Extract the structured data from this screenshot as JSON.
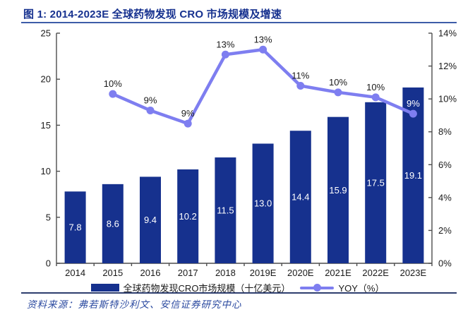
{
  "page": {
    "title": "图 1: 2014-2023E 全球药物发现 CRO 市场规模及增速",
    "source_label": "资料来源：",
    "source_text": "弗若斯特沙利文、安信证券研究中心"
  },
  "colors": {
    "bar": "#16318e",
    "line": "#7e7ef0",
    "title_text": "#16318f",
    "title_underline": "#3d5ca8",
    "axis": "#4d4d4d",
    "axis_text": "#1a1a1a",
    "bar_label": "#ffffff",
    "footer_divider": "#2e3e6e",
    "footer_text": "#2b4aa0"
  },
  "chart_data": {
    "type": "bar",
    "title": "2014-2023E 全球药物发现 CRO 市场规模及增速",
    "categories": [
      "2014",
      "2015",
      "2016",
      "2017",
      "2018",
      "2019E",
      "2020E",
      "2021E",
      "2022E",
      "2023E"
    ],
    "series": [
      {
        "name": "全球药物发现CRO市场规模（十亿美元）",
        "type": "bar",
        "axis": "left",
        "values": [
          7.8,
          8.6,
          9.4,
          10.2,
          11.5,
          13.0,
          14.4,
          15.9,
          17.5,
          19.1
        ],
        "labels": [
          "7.8",
          "8.6",
          "9.4",
          "10.2",
          "11.5",
          "13.0",
          "14.4",
          "15.9",
          "17.5",
          "19.1"
        ]
      },
      {
        "name": "YOY（%）",
        "type": "line",
        "axis": "right",
        "start_index": 1,
        "values": [
          10.3,
          9.3,
          8.5,
          12.7,
          13.0,
          10.8,
          10.4,
          10.1,
          9.1
        ],
        "labels": [
          "10%",
          "9%",
          "9%",
          "13%",
          "13%",
          "11%",
          "10%",
          "10%",
          "9%"
        ],
        "label_colors": [
          null,
          null,
          null,
          null,
          null,
          null,
          null,
          null,
          "#ffffff"
        ]
      }
    ],
    "left_axis": {
      "min": 0,
      "max": 25,
      "step": 5,
      "ticks": [
        "0",
        "5",
        "10",
        "15",
        "20",
        "25"
      ]
    },
    "right_axis": {
      "min": 0,
      "max": 14,
      "step": 2,
      "ticks": [
        "0%",
        "2%",
        "4%",
        "6%",
        "8%",
        "10%",
        "12%",
        "14%"
      ]
    },
    "grid": false,
    "legend_position": "bottom-center",
    "legend": [
      {
        "label": "全球药物发现CRO市场规模（十亿美元）",
        "swatch": "bar"
      },
      {
        "label": "YOY（%）",
        "swatch": "line"
      }
    ]
  }
}
